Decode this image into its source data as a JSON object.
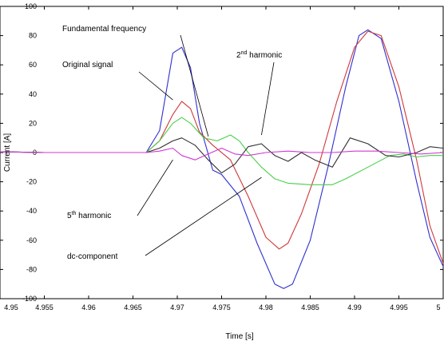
{
  "chart_data": {
    "type": "line",
    "title": "",
    "xlabel": "Time [s]",
    "ylabel": "Current [A]",
    "xlim": [
      4.95,
      5.0
    ],
    "ylim": [
      -100,
      100
    ],
    "x_ticks": [
      "4.95",
      "4.955",
      "4.96",
      "4.965",
      "4.97",
      "4.975",
      "4.98",
      "4.985",
      "4.99",
      "4.995",
      "5"
    ],
    "y_ticks": [
      "100",
      "80",
      "60",
      "40",
      "20",
      "0",
      "-20",
      "-40",
      "-60",
      "-80",
      "-100"
    ],
    "grid": false,
    "legend": "none",
    "series": [
      {
        "name": "Original signal",
        "color": "#2f2fd0",
        "points": [
          [
            4.95,
            0.5
          ],
          [
            4.955,
            0
          ],
          [
            4.96,
            0
          ],
          [
            4.965,
            0
          ],
          [
            4.9665,
            0
          ],
          [
            4.968,
            15
          ],
          [
            4.9695,
            68
          ],
          [
            4.9705,
            72
          ],
          [
            4.9715,
            58
          ],
          [
            4.9725,
            20
          ],
          [
            4.974,
            -12
          ],
          [
            4.975,
            -15
          ],
          [
            4.977,
            -30
          ],
          [
            4.979,
            -62
          ],
          [
            4.981,
            -90
          ],
          [
            4.982,
            -93
          ],
          [
            4.983,
            -90
          ],
          [
            4.985,
            -60
          ],
          [
            4.987,
            -10
          ],
          [
            4.989,
            45
          ],
          [
            4.9905,
            80
          ],
          [
            4.9915,
            84
          ],
          [
            4.993,
            78
          ],
          [
            4.995,
            35
          ],
          [
            4.997,
            -20
          ],
          [
            4.9985,
            -58
          ],
          [
            5.0,
            -78
          ]
        ]
      },
      {
        "name": "Fundamental frequency",
        "color": "#d03838",
        "points": [
          [
            4.95,
            0.5
          ],
          [
            4.955,
            0
          ],
          [
            4.96,
            0
          ],
          [
            4.965,
            0
          ],
          [
            4.9665,
            0
          ],
          [
            4.968,
            8
          ],
          [
            4.9695,
            26
          ],
          [
            4.9705,
            35
          ],
          [
            4.9715,
            30
          ],
          [
            4.9725,
            14
          ],
          [
            4.974,
            5
          ],
          [
            4.976,
            -5
          ],
          [
            4.978,
            -30
          ],
          [
            4.98,
            -58
          ],
          [
            4.9815,
            -66
          ],
          [
            4.9825,
            -62
          ],
          [
            4.984,
            -42
          ],
          [
            4.986,
            -8
          ],
          [
            4.988,
            35
          ],
          [
            4.99,
            72
          ],
          [
            4.9915,
            83
          ],
          [
            4.993,
            80
          ],
          [
            4.995,
            45
          ],
          [
            4.997,
            -5
          ],
          [
            4.9985,
            -50
          ],
          [
            5.0,
            -76
          ]
        ]
      },
      {
        "name": "dc-component",
        "color": "#48d048",
        "points": [
          [
            4.95,
            0.5
          ],
          [
            4.955,
            0
          ],
          [
            4.96,
            0
          ],
          [
            4.965,
            0
          ],
          [
            4.9665,
            0
          ],
          [
            4.968,
            8
          ],
          [
            4.9695,
            20
          ],
          [
            4.9705,
            24
          ],
          [
            4.9715,
            20
          ],
          [
            4.973,
            10
          ],
          [
            4.9745,
            8
          ],
          [
            4.976,
            12
          ],
          [
            4.977,
            8
          ],
          [
            4.978,
            0
          ],
          [
            4.9795,
            -10
          ],
          [
            4.981,
            -18
          ],
          [
            4.9825,
            -21
          ],
          [
            4.985,
            -22
          ],
          [
            4.9875,
            -22
          ],
          [
            4.989,
            -18
          ],
          [
            4.9915,
            -10
          ],
          [
            4.994,
            -2
          ],
          [
            4.9955,
            -1
          ],
          [
            4.997,
            -3
          ],
          [
            4.9985,
            -2
          ],
          [
            5.0,
            -2
          ]
        ]
      },
      {
        "name": "2nd harmonic",
        "color": "#303030",
        "points": [
          [
            4.95,
            0.5
          ],
          [
            4.955,
            0
          ],
          [
            4.96,
            0
          ],
          [
            4.965,
            0
          ],
          [
            4.9665,
            0
          ],
          [
            4.968,
            3
          ],
          [
            4.9695,
            8
          ],
          [
            4.9705,
            10
          ],
          [
            4.972,
            5
          ],
          [
            4.9735,
            -5
          ],
          [
            4.975,
            -14
          ],
          [
            4.9765,
            -8
          ],
          [
            4.978,
            4
          ],
          [
            4.9795,
            6
          ],
          [
            4.981,
            -2
          ],
          [
            4.9825,
            -6
          ],
          [
            4.984,
            0
          ],
          [
            4.9855,
            -5
          ],
          [
            4.9875,
            -10
          ],
          [
            4.9895,
            10
          ],
          [
            4.9915,
            6
          ],
          [
            4.9935,
            -2
          ],
          [
            4.995,
            -3
          ],
          [
            4.997,
            0
          ],
          [
            4.9985,
            4
          ],
          [
            5.0,
            3
          ]
        ]
      },
      {
        "name": "5th harmonic",
        "color": "#d038d0",
        "points": [
          [
            4.95,
            0.5
          ],
          [
            4.955,
            0
          ],
          [
            4.96,
            0
          ],
          [
            4.965,
            0
          ],
          [
            4.9665,
            0
          ],
          [
            4.968,
            1
          ],
          [
            4.9695,
            3
          ],
          [
            4.9705,
            -2
          ],
          [
            4.972,
            -5
          ],
          [
            4.9735,
            -1
          ],
          [
            4.975,
            3
          ],
          [
            4.9765,
            -1
          ],
          [
            4.978,
            -2
          ],
          [
            4.98,
            0
          ],
          [
            4.9825,
            1
          ],
          [
            4.985,
            0
          ],
          [
            4.9875,
            0
          ],
          [
            4.99,
            1
          ],
          [
            4.9925,
            1
          ],
          [
            4.995,
            0
          ],
          [
            4.9975,
            -1
          ],
          [
            5.0,
            0
          ]
        ]
      }
    ],
    "annotations": [
      {
        "label": "Fundamental frequency",
        "sup": "",
        "suffix": "",
        "line_to_x": 4.9735,
        "line_to_y": 11
      },
      {
        "label": "Original signal",
        "sup": "",
        "suffix": "",
        "line_to_x": 4.9695,
        "line_to_y": 36
      },
      {
        "label": "2",
        "sup": "nd",
        "suffix": " harmonic",
        "line_to_x": 4.9795,
        "line_to_y": 12
      },
      {
        "label": "5",
        "sup": "th",
        "suffix": " harmonic",
        "line_to_x": 4.9695,
        "line_to_y": -5
      },
      {
        "label": "dc-component",
        "sup": "",
        "suffix": "",
        "line_to_x": 4.9795,
        "line_to_y": -17
      }
    ]
  }
}
